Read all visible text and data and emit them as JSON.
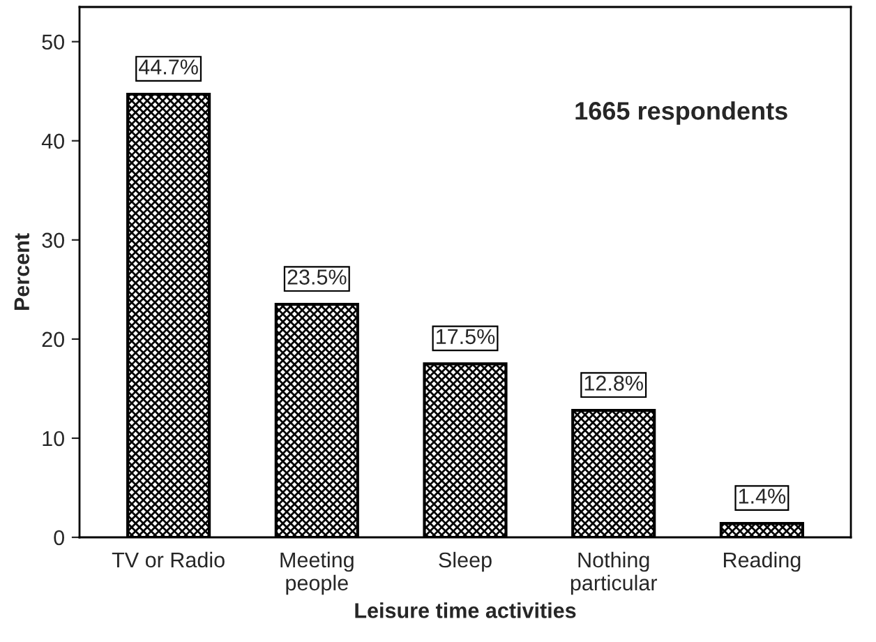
{
  "chart_data": {
    "type": "bar",
    "xlabel": "Leisure time activities",
    "ylabel": "Percent",
    "categories": [
      "TV or Radio",
      "Meeting\npeople",
      "Sleep",
      "Nothing\nparticular",
      "Reading"
    ],
    "values": [
      44.7,
      23.5,
      17.5,
      12.8,
      1.4
    ],
    "value_labels": [
      "44.7%",
      "23.5%",
      "17.5%",
      "12.8%",
      "1.4%"
    ],
    "color": "#000000",
    "ylim": [
      0,
      53.5
    ],
    "yticks": [
      0,
      10,
      20,
      30,
      40,
      50
    ],
    "annotations": [
      "1665 respondents"
    ],
    "grid": false,
    "legend": false
  }
}
